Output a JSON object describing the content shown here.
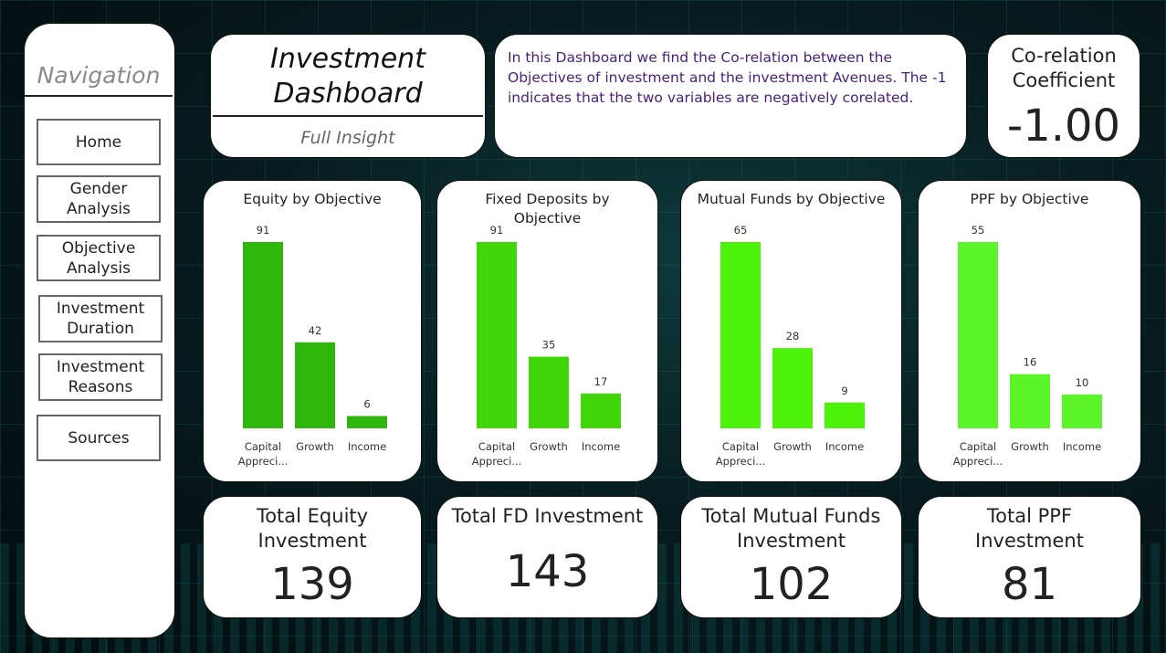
{
  "navigation": {
    "title": "Navigation",
    "items": [
      {
        "label": "Home"
      },
      {
        "label": "Gender\nAnalysis"
      },
      {
        "label": "Objective\nAnalysis"
      },
      {
        "label": "Investment\nDuration"
      },
      {
        "label": "Investment\nReasons"
      },
      {
        "label": "Sources"
      }
    ]
  },
  "header": {
    "title": "Investment\nDashboard",
    "subtitle": "Full Insight"
  },
  "description": "In this Dashboard we find the Co-relation between the Objectives of investment and the investment Avenues. The -1 indicates that the two variables are negatively corelated.",
  "correlation": {
    "label": "Co-relation\nCoefficient",
    "value": "-1.00"
  },
  "chart_data": [
    {
      "type": "bar",
      "title": "Equity by Objective",
      "categories": [
        "Capital\nAppreci...",
        "Growth",
        "Income"
      ],
      "values": [
        91,
        42,
        6
      ],
      "color": "#2fb60c"
    },
    {
      "type": "bar",
      "title": "Fixed Deposits by\nObjective",
      "categories": [
        "Capital\nAppreci...",
        "Growth",
        "Income"
      ],
      "values": [
        91,
        35,
        17
      ],
      "color": "#40d60a"
    },
    {
      "type": "bar",
      "title": "Mutual Funds by Objective",
      "categories": [
        "Capital\nAppreci...",
        "Growth",
        "Income"
      ],
      "values": [
        65,
        28,
        9
      ],
      "color": "#4cf20a"
    },
    {
      "type": "bar",
      "title": "PPF by Objective",
      "categories": [
        "Capital\nAppreci...",
        "Growth",
        "Income"
      ],
      "values": [
        55,
        16,
        10
      ],
      "color": "#5cf52a"
    }
  ],
  "totals": [
    {
      "label": "Total Equity\nInvestment",
      "value": "139"
    },
    {
      "label": "Total FD Investment",
      "value": "143"
    },
    {
      "label": "Total Mutual Funds\nInvestment",
      "value": "102"
    },
    {
      "label": "Total PPF\nInvestment",
      "value": "81"
    }
  ]
}
